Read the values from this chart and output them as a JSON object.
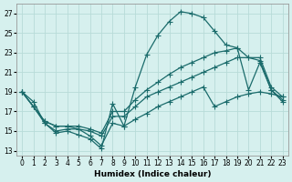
{
  "xlabel": "Humidex (Indice chaleur)",
  "background_color": "#d6f0ee",
  "grid_color": "#b8dbd8",
  "line_color": "#1a6b6b",
  "xlim": [
    -0.5,
    23.5
  ],
  "ylim": [
    12.5,
    28.0
  ],
  "xticks": [
    0,
    1,
    2,
    3,
    4,
    5,
    6,
    7,
    8,
    9,
    10,
    11,
    12,
    13,
    14,
    15,
    16,
    17,
    18,
    19,
    20,
    21,
    22,
    23
  ],
  "yticks": [
    13,
    15,
    17,
    19,
    21,
    23,
    25,
    27
  ],
  "line1_x": [
    0,
    1,
    2,
    3,
    4,
    5,
    6,
    7,
    8,
    9,
    10,
    11,
    12,
    13,
    14,
    15,
    16,
    17,
    18,
    19,
    20,
    21,
    22,
    23
  ],
  "line1_y": [
    19.0,
    18.0,
    15.8,
    14.8,
    15.0,
    14.6,
    14.2,
    13.2,
    17.8,
    15.5,
    19.5,
    22.8,
    24.8,
    26.2,
    27.2,
    27.0,
    26.6,
    25.2,
    23.8,
    23.5,
    19.2,
    22.0,
    19.2,
    18.0
  ],
  "line2_x": [
    0,
    1,
    2,
    3,
    4,
    5,
    6,
    7,
    8,
    9,
    10,
    11,
    12,
    13,
    14,
    15,
    16,
    17,
    18,
    19,
    20,
    21,
    22,
    23
  ],
  "line2_y": [
    19.0,
    17.5,
    15.8,
    15.0,
    15.2,
    15.2,
    14.5,
    13.5,
    15.8,
    15.5,
    16.2,
    16.8,
    17.5,
    18.0,
    18.5,
    19.0,
    19.5,
    17.5,
    18.0,
    18.5,
    18.8,
    19.0,
    18.8,
    18.5
  ],
  "line3_x": [
    0,
    1,
    2,
    3,
    4,
    5,
    6,
    7,
    8,
    9,
    10,
    11,
    12,
    13,
    14,
    15,
    16,
    17,
    18,
    19,
    20,
    21,
    22,
    23
  ],
  "line3_y": [
    19.0,
    17.5,
    16.0,
    15.5,
    15.5,
    15.2,
    15.0,
    14.5,
    16.5,
    16.5,
    17.5,
    18.5,
    19.0,
    19.5,
    20.0,
    20.5,
    21.0,
    21.5,
    22.0,
    22.5,
    22.5,
    22.2,
    19.2,
    18.2
  ],
  "line4_x": [
    0,
    1,
    2,
    3,
    4,
    5,
    6,
    7,
    8,
    9,
    10,
    11,
    12,
    13,
    14,
    15,
    16,
    17,
    18,
    19,
    20,
    21,
    22,
    23
  ],
  "line4_y": [
    19.0,
    17.5,
    16.0,
    15.5,
    15.5,
    15.5,
    15.2,
    14.8,
    17.0,
    17.0,
    18.2,
    19.2,
    20.0,
    20.8,
    21.5,
    22.0,
    22.5,
    23.0,
    23.2,
    23.5,
    22.5,
    22.5,
    19.5,
    18.5
  ],
  "marker": "+",
  "markersize": 4,
  "linewidth": 0.9,
  "tick_fontsize": 5.5,
  "label_fontsize": 6.5
}
